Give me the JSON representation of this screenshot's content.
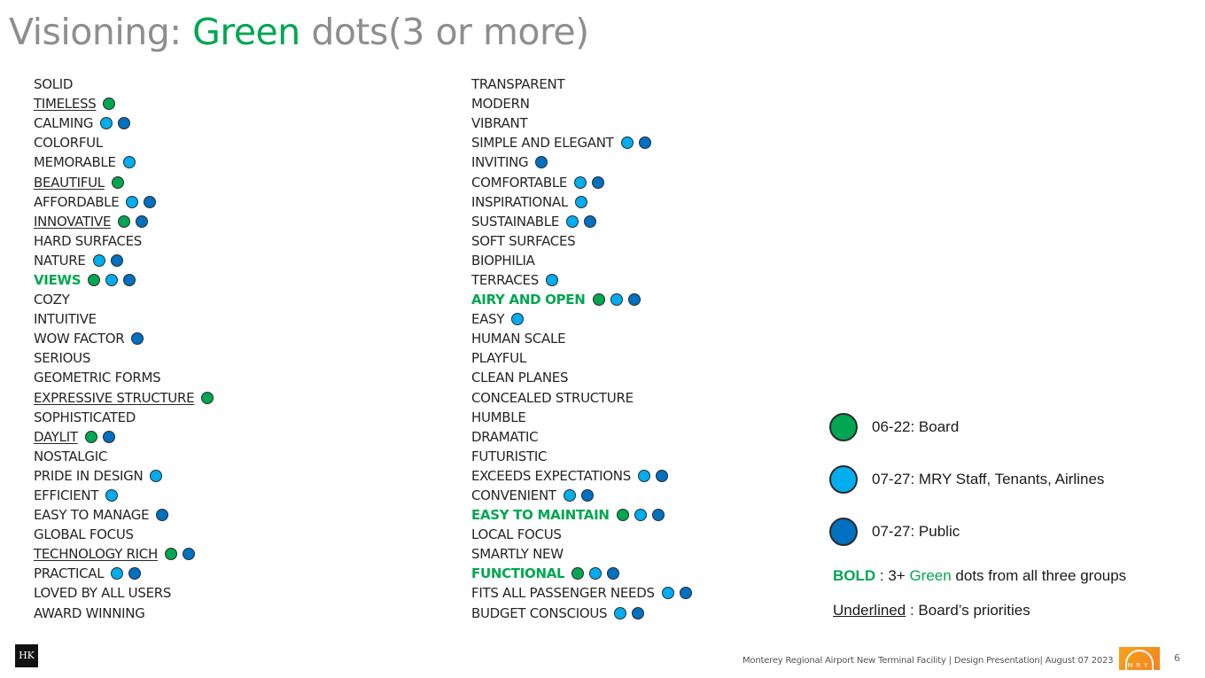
{
  "title": {
    "prefix": "Visioning: ",
    "accent": "Green",
    "suffix": " dots(3 or more)"
  },
  "colors": {
    "board": "#00a651",
    "staff": "#00adef",
    "public": "#0070c0"
  },
  "left_items": [
    {
      "label": "SOLID",
      "style": "",
      "dots": []
    },
    {
      "label": "TIMELESS",
      "style": "underline",
      "dots": [
        "board"
      ]
    },
    {
      "label": "CALMING",
      "style": "",
      "dots": [
        "staff",
        "public"
      ]
    },
    {
      "label": "COLORFUL",
      "style": "",
      "dots": []
    },
    {
      "label": "MEMORABLE",
      "style": "",
      "dots": [
        "staff"
      ]
    },
    {
      "label": "BEAUTIFUL",
      "style": "underline",
      "dots": [
        "board"
      ]
    },
    {
      "label": "AFFORDABLE",
      "style": "",
      "dots": [
        "staff",
        "public"
      ]
    },
    {
      "label": "INNOVATIVE",
      "style": "underline",
      "dots": [
        "board",
        "public"
      ]
    },
    {
      "label": "HARD SURFACES",
      "style": "",
      "dots": []
    },
    {
      "label": "NATURE",
      "style": "",
      "dots": [
        "staff",
        "public"
      ]
    },
    {
      "label": "VIEWS",
      "style": "bold",
      "dots": [
        "board",
        "staff",
        "public"
      ]
    },
    {
      "label": "COZY",
      "style": "",
      "dots": []
    },
    {
      "label": "INTUITIVE",
      "style": "",
      "dots": []
    },
    {
      "label": "WOW FACTOR",
      "style": "",
      "dots": [
        "public"
      ]
    },
    {
      "label": "SERIOUS",
      "style": "",
      "dots": []
    },
    {
      "label": "GEOMETRIC FORMS",
      "style": "",
      "dots": []
    },
    {
      "label": "EXPRESSIVE STRUCTURE",
      "style": "underline",
      "dots": [
        "board"
      ]
    },
    {
      "label": "SOPHISTICATED",
      "style": "",
      "dots": []
    },
    {
      "label": "DAYLIT",
      "style": "underline",
      "dots": [
        "board",
        "public"
      ]
    },
    {
      "label": "NOSTALGIC",
      "style": "",
      "dots": []
    },
    {
      "label": "PRIDE IN DESIGN",
      "style": "",
      "dots": [
        "staff"
      ]
    },
    {
      "label": "EFFICIENT",
      "style": "",
      "dots": [
        "staff"
      ]
    },
    {
      "label": "EASY TO MANAGE",
      "style": "",
      "dots": [
        "public"
      ]
    },
    {
      "label": "GLOBAL FOCUS",
      "style": "",
      "dots": []
    },
    {
      "label": "TECHNOLOGY RICH",
      "style": "underline",
      "dots": [
        "board",
        "public"
      ]
    },
    {
      "label": "PRACTICAL",
      "style": "",
      "dots": [
        "staff",
        "public"
      ]
    },
    {
      "label": "LOVED BY ALL USERS",
      "style": "",
      "dots": []
    },
    {
      "label": "AWARD WINNING",
      "style": "",
      "dots": []
    }
  ],
  "right_items": [
    {
      "label": "TRANSPARENT",
      "style": "",
      "dots": []
    },
    {
      "label": "MODERN",
      "style": "",
      "dots": []
    },
    {
      "label": "VIBRANT",
      "style": "",
      "dots": []
    },
    {
      "label": "SIMPLE AND ELEGANT",
      "style": "",
      "dots": [
        "staff",
        "public"
      ]
    },
    {
      "label": "INVITING",
      "style": "",
      "dots": [
        "public"
      ]
    },
    {
      "label": "COMFORTABLE",
      "style": "",
      "dots": [
        "staff",
        "public"
      ]
    },
    {
      "label": "INSPIRATIONAL",
      "style": "",
      "dots": [
        "staff"
      ]
    },
    {
      "label": "SUSTAINABLE",
      "style": "",
      "dots": [
        "staff",
        "public"
      ]
    },
    {
      "label": "SOFT SURFACES",
      "style": "",
      "dots": []
    },
    {
      "label": "BIOPHILIA",
      "style": "",
      "dots": []
    },
    {
      "label": "TERRACES",
      "style": "",
      "dots": [
        "staff"
      ]
    },
    {
      "label": "AIRY AND OPEN",
      "style": "bold",
      "dots": [
        "board",
        "staff",
        "public"
      ]
    },
    {
      "label": "EASY",
      "style": "",
      "dots": [
        "staff"
      ]
    },
    {
      "label": "HUMAN SCALE",
      "style": "",
      "dots": []
    },
    {
      "label": "PLAYFUL",
      "style": "",
      "dots": []
    },
    {
      "label": "CLEAN PLANES",
      "style": "",
      "dots": []
    },
    {
      "label": "CONCEALED STRUCTURE",
      "style": "",
      "dots": []
    },
    {
      "label": "HUMBLE",
      "style": "",
      "dots": []
    },
    {
      "label": "DRAMATIC",
      "style": "",
      "dots": []
    },
    {
      "label": "FUTURISTIC",
      "style": "",
      "dots": []
    },
    {
      "label": "EXCEEDS EXPECTATIONS",
      "style": "",
      "dots": [
        "staff",
        "public"
      ]
    },
    {
      "label": "CONVENIENT",
      "style": "",
      "dots": [
        "staff",
        "public"
      ]
    },
    {
      "label": "EASY TO MAINTAIN",
      "style": "bold",
      "dots": [
        "board",
        "staff",
        "public"
      ]
    },
    {
      "label": "LOCAL FOCUS",
      "style": "",
      "dots": []
    },
    {
      "label": "SMARTLY  NEW",
      "style": "",
      "dots": []
    },
    {
      "label": "FUNCTIONAL",
      "style": "bold",
      "dots": [
        "board",
        "staff",
        "public"
      ]
    },
    {
      "label": "FITS ALL PASSENGER NEEDS",
      "style": "",
      "dots": [
        "staff",
        "public"
      ]
    },
    {
      "label": "BUDGET CONSCIOUS",
      "style": "",
      "dots": [
        "staff",
        "public"
      ]
    }
  ],
  "legend": {
    "board": "06-22: Board",
    "staff": "07-27: MRY Staff, Tenants, Airlines",
    "public": "07-27: Public",
    "bold_key": "BOLD",
    "bold_sep": " : 3+ ",
    "bold_green": "Green",
    "bold_rest": " dots from all three groups",
    "underline_key": "Underlined",
    "underline_rest": " : Board’s priorities"
  },
  "footer": {
    "text": "Monterey Regional Airport New Terminal Facility | Design Presentation| August 07 2023",
    "page": "6",
    "logo_letters": "MRY",
    "firm_logo": "HK"
  }
}
